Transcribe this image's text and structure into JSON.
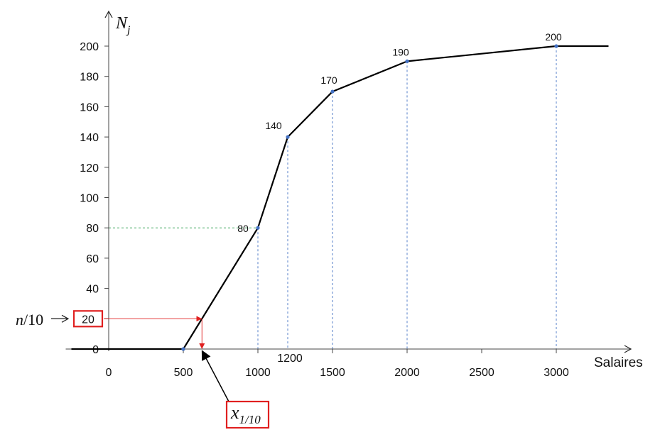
{
  "chart_data": {
    "type": "line",
    "title": "",
    "ylabel": {
      "main": "N",
      "sub": "j"
    },
    "xlabel": "Salaires",
    "x_range": [
      -250,
      3350
    ],
    "ylim": [
      0,
      200
    ],
    "y_ticks": [
      0,
      20,
      40,
      60,
      80,
      100,
      120,
      140,
      160,
      180,
      200
    ],
    "x_ticks": [
      0,
      500,
      1000,
      1500,
      2000,
      2500,
      3000
    ],
    "extra_x_tick": 1200,
    "grid": false,
    "series": [
      {
        "x": [
          -250,
          500,
          1000,
          1200,
          1500,
          2000,
          3000,
          3350
        ],
        "y": [
          0,
          0,
          80,
          140,
          170,
          190,
          200,
          200
        ]
      }
    ],
    "points": [
      {
        "x": 500,
        "y": 0,
        "label": ""
      },
      {
        "x": 1000,
        "y": 80,
        "label": "80"
      },
      {
        "x": 1200,
        "y": 140,
        "label": "140"
      },
      {
        "x": 1500,
        "y": 170,
        "label": "170"
      },
      {
        "x": 2000,
        "y": 190,
        "label": "190"
      },
      {
        "x": 3000,
        "y": 200,
        "label": "200"
      }
    ],
    "annotations": {
      "n_over_10": {
        "label": "n/10",
        "value": "20",
        "y": 20
      },
      "decile": {
        "label_main": "x",
        "label_sub": "1/10",
        "x": 625
      }
    },
    "colors": {
      "line": "#000000",
      "point": "#4472c4",
      "guide": "#4472c4",
      "guide_80": "#2e9e4f",
      "red": "#e02020"
    }
  }
}
